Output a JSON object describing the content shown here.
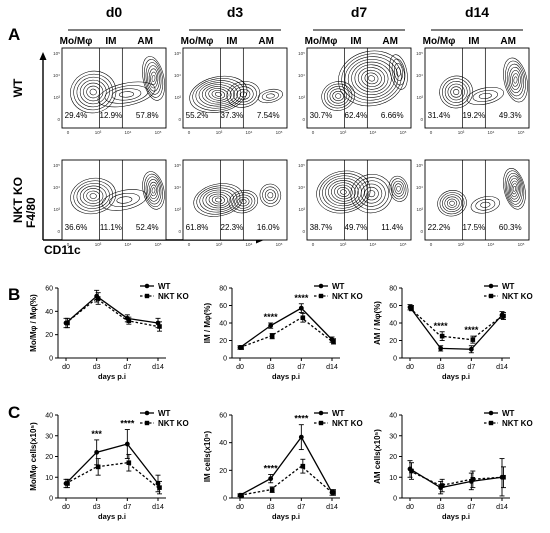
{
  "panels": {
    "a": "A",
    "b": "B",
    "c": "C"
  },
  "flow": {
    "days": [
      "d0",
      "d3",
      "d7",
      "d14"
    ],
    "gate_labels": [
      "Mo/Mφ",
      "IM",
      "AM"
    ],
    "rows": [
      {
        "label": "WT",
        "percents": [
          [
            "29.4%",
            "12.9%",
            "57.8%"
          ],
          [
            "55.2%",
            "37.3%",
            "7.54%"
          ],
          [
            "30.7%",
            "62.4%",
            "6.66%"
          ],
          [
            "31.4%",
            "19.2%",
            "49.3%"
          ]
        ]
      },
      {
        "label": "NKT KO",
        "percents": [
          [
            "36.6%",
            "11.1%",
            "52.4%"
          ],
          [
            "61.8%",
            "22.3%",
            "16.0%"
          ],
          [
            "38.7%",
            "49.7%",
            "11.4%"
          ],
          [
            "22.2%",
            "17.5%",
            "60.3%"
          ]
        ]
      }
    ],
    "y_axis_label": "F4/80",
    "x_axis_label": "CD11c",
    "y_ticks": [
      "10⁵",
      "10⁴",
      "10³",
      "0"
    ],
    "x_ticks": [
      "0",
      "10³",
      "10⁴",
      "10⁵"
    ]
  },
  "chart_data": [
    {
      "type": "line",
      "id": "b1",
      "categories": [
        "d0",
        "d3",
        "d7",
        "d14"
      ],
      "xlabel": "days p.i",
      "ylabel": "Mo/Mφ / Mφ(%)",
      "ylim": [
        0,
        60
      ],
      "yticks": [
        0,
        20,
        40,
        60
      ],
      "series": [
        {
          "name": "WT",
          "values": [
            30,
            53,
            34,
            30
          ],
          "errors": [
            4,
            5,
            3,
            4
          ]
        },
        {
          "name": "NKT KO",
          "values": [
            30,
            51,
            32,
            27
          ],
          "errors": [
            4,
            5,
            3,
            4
          ]
        }
      ],
      "annotations": []
    },
    {
      "type": "line",
      "id": "b2",
      "categories": [
        "d0",
        "d3",
        "d7",
        "d14"
      ],
      "xlabel": "days p.i",
      "ylabel": "IM / Mφ(%)",
      "ylim": [
        0,
        80
      ],
      "yticks": [
        0,
        20,
        40,
        60,
        80
      ],
      "series": [
        {
          "name": "WT",
          "values": [
            12,
            37,
            57,
            21
          ],
          "errors": [
            2,
            3,
            5,
            3
          ]
        },
        {
          "name": "NKT KO",
          "values": [
            12,
            25,
            46,
            19
          ],
          "errors": [
            2,
            3,
            5,
            3
          ]
        }
      ],
      "annotations": [
        {
          "index": 1,
          "text": "****"
        },
        {
          "index": 2,
          "text": "****"
        }
      ]
    },
    {
      "type": "line",
      "id": "b3",
      "categories": [
        "d0",
        "d3",
        "d7",
        "d14"
      ],
      "xlabel": "days p.i",
      "ylabel": "AM / Mφ(%)",
      "ylim": [
        0,
        80
      ],
      "yticks": [
        0,
        20,
        40,
        60,
        80
      ],
      "series": [
        {
          "name": "WT",
          "values": [
            58,
            11,
            10,
            49
          ],
          "errors": [
            3,
            3,
            4,
            4
          ]
        },
        {
          "name": "NKT KO",
          "values": [
            57,
            25,
            21,
            48
          ],
          "errors": [
            3,
            5,
            4,
            4
          ]
        }
      ],
      "annotations": [
        {
          "index": 1,
          "text": "****"
        },
        {
          "index": 2,
          "text": "****"
        }
      ]
    },
    {
      "type": "line",
      "id": "c1",
      "categories": [
        "d0",
        "d3",
        "d7",
        "d14"
      ],
      "xlabel": "days p.i",
      "ylabel": "Mo/Mφ cells(x10⁵)",
      "ylim": [
        0,
        40
      ],
      "yticks": [
        0,
        10,
        20,
        30,
        40
      ],
      "series": [
        {
          "name": "WT",
          "values": [
            7,
            22,
            26,
            7
          ],
          "errors": [
            2,
            6,
            7,
            4
          ]
        },
        {
          "name": "NKT KO",
          "values": [
            7,
            15,
            17,
            5
          ],
          "errors": [
            2,
            4,
            4,
            3
          ]
        }
      ],
      "annotations": [
        {
          "index": 1,
          "text": "***"
        },
        {
          "index": 2,
          "text": "****"
        }
      ]
    },
    {
      "type": "line",
      "id": "c2",
      "categories": [
        "d0",
        "d3",
        "d7",
        "d14"
      ],
      "xlabel": "days p.i",
      "ylabel": "IM cells(x10⁵)",
      "ylim": [
        0,
        60
      ],
      "yticks": [
        0,
        20,
        40,
        60
      ],
      "series": [
        {
          "name": "WT",
          "values": [
            2,
            14,
            44,
            4
          ],
          "errors": [
            1,
            3,
            9,
            2
          ]
        },
        {
          "name": "NKT KO",
          "values": [
            2,
            6,
            23,
            4
          ],
          "errors": [
            1,
            2,
            5,
            2
          ]
        }
      ],
      "annotations": [
        {
          "index": 1,
          "text": "****"
        },
        {
          "index": 2,
          "text": "****"
        }
      ]
    },
    {
      "type": "line",
      "id": "c3",
      "categories": [
        "d0",
        "d3",
        "d7",
        "d14"
      ],
      "xlabel": "days p.i",
      "ylabel": "AM cells(x10⁵)",
      "ylim": [
        0,
        40
      ],
      "yticks": [
        0,
        10,
        20,
        30,
        40
      ],
      "series": [
        {
          "name": "WT",
          "values": [
            14,
            5,
            8,
            10
          ],
          "errors": [
            4,
            3,
            4,
            9
          ]
        },
        {
          "name": "NKT KO",
          "values": [
            13,
            6,
            9,
            10
          ],
          "errors": [
            4,
            3,
            4,
            5
          ]
        }
      ],
      "annotations": []
    }
  ]
}
